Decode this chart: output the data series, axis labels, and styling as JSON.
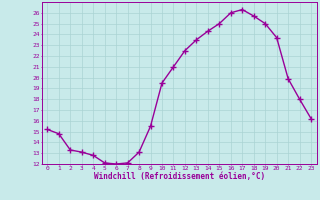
{
  "x": [
    0,
    1,
    2,
    3,
    4,
    5,
    6,
    7,
    8,
    9,
    10,
    11,
    12,
    13,
    14,
    15,
    16,
    17,
    18,
    19,
    20,
    21,
    22,
    23
  ],
  "y": [
    15.2,
    14.8,
    13.3,
    13.1,
    12.8,
    12.1,
    12.0,
    12.1,
    13.1,
    15.5,
    19.5,
    21.0,
    22.5,
    23.5,
    24.3,
    25.0,
    26.0,
    26.3,
    25.7,
    25.0,
    23.7,
    19.9,
    18.0,
    16.2
  ],
  "line_color": "#990099",
  "bg_color": "#c8eaea",
  "grid_color": "#aad4d4",
  "xlabel": "Windchill (Refroidissement éolien,°C)",
  "xlabel_color": "#990099",
  "tick_color": "#990099",
  "ylim": [
    12,
    27
  ],
  "xlim": [
    -0.5,
    23.5
  ],
  "yticks": [
    12,
    13,
    14,
    15,
    16,
    17,
    18,
    19,
    20,
    21,
    22,
    23,
    24,
    25,
    26
  ],
  "xticks": [
    0,
    1,
    2,
    3,
    4,
    5,
    6,
    7,
    8,
    9,
    10,
    11,
    12,
    13,
    14,
    15,
    16,
    17,
    18,
    19,
    20,
    21,
    22,
    23
  ],
  "marker": "+",
  "linewidth": 1.0,
  "markersize": 4
}
